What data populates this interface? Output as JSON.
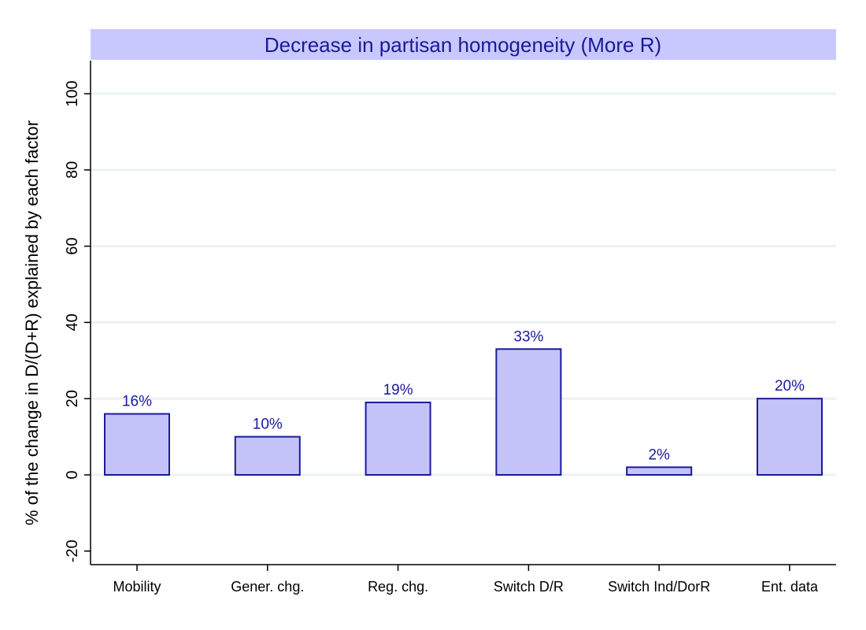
{
  "chart_data": {
    "type": "bar",
    "title": "Decrease in partisan homogeneity (More R)",
    "xlabel": "",
    "ylabel": "% of the change in D/(D+R) explained by each factor",
    "categories": [
      "Mobility",
      "Gener. chg.",
      "Reg. chg.",
      "Switch D/R",
      "Switch Ind/DorR",
      "Ent. data"
    ],
    "values": [
      16,
      10,
      19,
      33,
      2,
      20
    ],
    "data_labels": [
      "16%",
      "10%",
      "19%",
      "33%",
      "2%",
      "20%"
    ],
    "ylim": [
      -24,
      108
    ],
    "yticks": [
      -20,
      0,
      20,
      40,
      60,
      80,
      100
    ],
    "ytick_labels": [
      "-20",
      "0",
      "20",
      "40",
      "60",
      "80",
      "100"
    ],
    "grid": true,
    "legend": "none",
    "colors": {
      "bar_fill": "#c3c3fa",
      "bar_edge": "#1a1a99",
      "title_band": "#c8c8ff",
      "title_text": "#1a1a99",
      "label_text": "#1a1a99",
      "grid": "#eaf2f3"
    }
  }
}
